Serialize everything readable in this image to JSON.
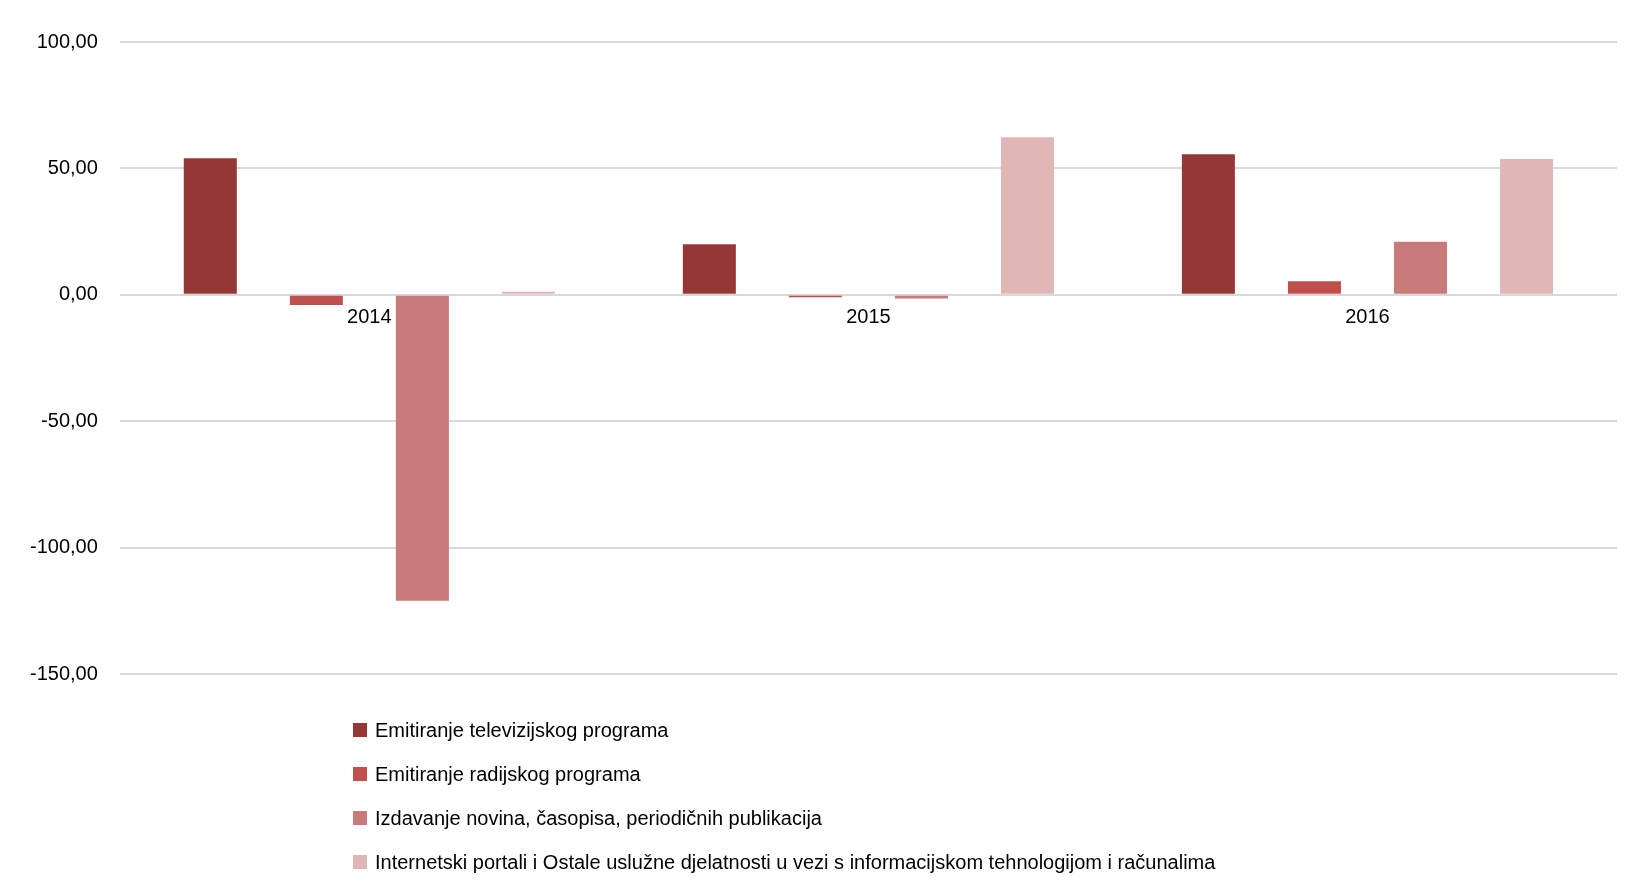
{
  "chart_data": {
    "type": "bar",
    "categories": [
      "2014",
      "2015",
      "2016"
    ],
    "series": [
      {
        "name": "Emitiranje televizijskog programa",
        "color": "#953735",
        "values": [
          54,
          20,
          55.6
        ]
      },
      {
        "name": "Emitiranje radijskog programa",
        "color": "#c0504d",
        "values": [
          -4,
          -1,
          5.4
        ]
      },
      {
        "name": "Izdavanje novina, časopisa, periodičnih publikacija",
        "color": "#c97b7a",
        "values": [
          -121,
          -1.5,
          21
        ]
      },
      {
        "name": "Internetski portali i Ostale uslužne djelatnosti u vezi s informacijskom tehnologijom i računalima",
        "color": "#e0b6b6",
        "values": [
          1.2,
          62.3,
          53.7
        ]
      }
    ],
    "ylim": [
      -150,
      100
    ],
    "yticks": [
      {
        "value": -150,
        "label": "-150,00"
      },
      {
        "value": -100,
        "label": "-100,00"
      },
      {
        "value": -50,
        "label": "-50,00"
      },
      {
        "value": 0,
        "label": "0,00"
      },
      {
        "value": 50,
        "label": "50,00"
      },
      {
        "value": 100,
        "label": "100,00"
      }
    ],
    "grid": "y",
    "legend": "bottom"
  }
}
